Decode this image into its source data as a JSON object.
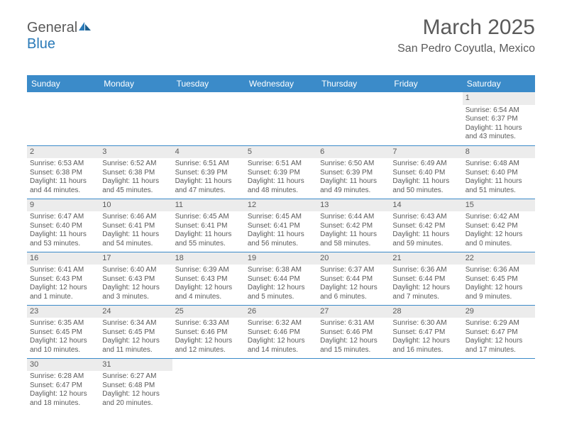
{
  "logo": {
    "text1": "General",
    "text2": "Blue"
  },
  "header": {
    "month": "March 2025",
    "location": "San Pedro Coyutla, Mexico"
  },
  "dayNames": [
    "Sunday",
    "Monday",
    "Tuesday",
    "Wednesday",
    "Thursday",
    "Friday",
    "Saturday"
  ],
  "colors": {
    "headerBg": "#3b8bc9",
    "headerText": "#ffffff",
    "bodyText": "#5a5a5a",
    "dayNumBg": "#ececec",
    "ruleColor": "#3b8bc9",
    "logoBlue": "#2a7ab8"
  },
  "weeks": [
    [
      null,
      null,
      null,
      null,
      null,
      null,
      {
        "n": "1",
        "sr": "Sunrise: 6:54 AM",
        "ss": "Sunset: 6:37 PM",
        "d1": "Daylight: 11 hours",
        "d2": "and 43 minutes."
      }
    ],
    [
      {
        "n": "2",
        "sr": "Sunrise: 6:53 AM",
        "ss": "Sunset: 6:38 PM",
        "d1": "Daylight: 11 hours",
        "d2": "and 44 minutes."
      },
      {
        "n": "3",
        "sr": "Sunrise: 6:52 AM",
        "ss": "Sunset: 6:38 PM",
        "d1": "Daylight: 11 hours",
        "d2": "and 45 minutes."
      },
      {
        "n": "4",
        "sr": "Sunrise: 6:51 AM",
        "ss": "Sunset: 6:39 PM",
        "d1": "Daylight: 11 hours",
        "d2": "and 47 minutes."
      },
      {
        "n": "5",
        "sr": "Sunrise: 6:51 AM",
        "ss": "Sunset: 6:39 PM",
        "d1": "Daylight: 11 hours",
        "d2": "and 48 minutes."
      },
      {
        "n": "6",
        "sr": "Sunrise: 6:50 AM",
        "ss": "Sunset: 6:39 PM",
        "d1": "Daylight: 11 hours",
        "d2": "and 49 minutes."
      },
      {
        "n": "7",
        "sr": "Sunrise: 6:49 AM",
        "ss": "Sunset: 6:40 PM",
        "d1": "Daylight: 11 hours",
        "d2": "and 50 minutes."
      },
      {
        "n": "8",
        "sr": "Sunrise: 6:48 AM",
        "ss": "Sunset: 6:40 PM",
        "d1": "Daylight: 11 hours",
        "d2": "and 51 minutes."
      }
    ],
    [
      {
        "n": "9",
        "sr": "Sunrise: 6:47 AM",
        "ss": "Sunset: 6:40 PM",
        "d1": "Daylight: 11 hours",
        "d2": "and 53 minutes."
      },
      {
        "n": "10",
        "sr": "Sunrise: 6:46 AM",
        "ss": "Sunset: 6:41 PM",
        "d1": "Daylight: 11 hours",
        "d2": "and 54 minutes."
      },
      {
        "n": "11",
        "sr": "Sunrise: 6:45 AM",
        "ss": "Sunset: 6:41 PM",
        "d1": "Daylight: 11 hours",
        "d2": "and 55 minutes."
      },
      {
        "n": "12",
        "sr": "Sunrise: 6:45 AM",
        "ss": "Sunset: 6:41 PM",
        "d1": "Daylight: 11 hours",
        "d2": "and 56 minutes."
      },
      {
        "n": "13",
        "sr": "Sunrise: 6:44 AM",
        "ss": "Sunset: 6:42 PM",
        "d1": "Daylight: 11 hours",
        "d2": "and 58 minutes."
      },
      {
        "n": "14",
        "sr": "Sunrise: 6:43 AM",
        "ss": "Sunset: 6:42 PM",
        "d1": "Daylight: 11 hours",
        "d2": "and 59 minutes."
      },
      {
        "n": "15",
        "sr": "Sunrise: 6:42 AM",
        "ss": "Sunset: 6:42 PM",
        "d1": "Daylight: 12 hours",
        "d2": "and 0 minutes."
      }
    ],
    [
      {
        "n": "16",
        "sr": "Sunrise: 6:41 AM",
        "ss": "Sunset: 6:43 PM",
        "d1": "Daylight: 12 hours",
        "d2": "and 1 minute."
      },
      {
        "n": "17",
        "sr": "Sunrise: 6:40 AM",
        "ss": "Sunset: 6:43 PM",
        "d1": "Daylight: 12 hours",
        "d2": "and 3 minutes."
      },
      {
        "n": "18",
        "sr": "Sunrise: 6:39 AM",
        "ss": "Sunset: 6:43 PM",
        "d1": "Daylight: 12 hours",
        "d2": "and 4 minutes."
      },
      {
        "n": "19",
        "sr": "Sunrise: 6:38 AM",
        "ss": "Sunset: 6:44 PM",
        "d1": "Daylight: 12 hours",
        "d2": "and 5 minutes."
      },
      {
        "n": "20",
        "sr": "Sunrise: 6:37 AM",
        "ss": "Sunset: 6:44 PM",
        "d1": "Daylight: 12 hours",
        "d2": "and 6 minutes."
      },
      {
        "n": "21",
        "sr": "Sunrise: 6:36 AM",
        "ss": "Sunset: 6:44 PM",
        "d1": "Daylight: 12 hours",
        "d2": "and 7 minutes."
      },
      {
        "n": "22",
        "sr": "Sunrise: 6:36 AM",
        "ss": "Sunset: 6:45 PM",
        "d1": "Daylight: 12 hours",
        "d2": "and 9 minutes."
      }
    ],
    [
      {
        "n": "23",
        "sr": "Sunrise: 6:35 AM",
        "ss": "Sunset: 6:45 PM",
        "d1": "Daylight: 12 hours",
        "d2": "and 10 minutes."
      },
      {
        "n": "24",
        "sr": "Sunrise: 6:34 AM",
        "ss": "Sunset: 6:45 PM",
        "d1": "Daylight: 12 hours",
        "d2": "and 11 minutes."
      },
      {
        "n": "25",
        "sr": "Sunrise: 6:33 AM",
        "ss": "Sunset: 6:46 PM",
        "d1": "Daylight: 12 hours",
        "d2": "and 12 minutes."
      },
      {
        "n": "26",
        "sr": "Sunrise: 6:32 AM",
        "ss": "Sunset: 6:46 PM",
        "d1": "Daylight: 12 hours",
        "d2": "and 14 minutes."
      },
      {
        "n": "27",
        "sr": "Sunrise: 6:31 AM",
        "ss": "Sunset: 6:46 PM",
        "d1": "Daylight: 12 hours",
        "d2": "and 15 minutes."
      },
      {
        "n": "28",
        "sr": "Sunrise: 6:30 AM",
        "ss": "Sunset: 6:47 PM",
        "d1": "Daylight: 12 hours",
        "d2": "and 16 minutes."
      },
      {
        "n": "29",
        "sr": "Sunrise: 6:29 AM",
        "ss": "Sunset: 6:47 PM",
        "d1": "Daylight: 12 hours",
        "d2": "and 17 minutes."
      }
    ],
    [
      {
        "n": "30",
        "sr": "Sunrise: 6:28 AM",
        "ss": "Sunset: 6:47 PM",
        "d1": "Daylight: 12 hours",
        "d2": "and 18 minutes."
      },
      {
        "n": "31",
        "sr": "Sunrise: 6:27 AM",
        "ss": "Sunset: 6:48 PM",
        "d1": "Daylight: 12 hours",
        "d2": "and 20 minutes."
      },
      null,
      null,
      null,
      null,
      null
    ]
  ]
}
